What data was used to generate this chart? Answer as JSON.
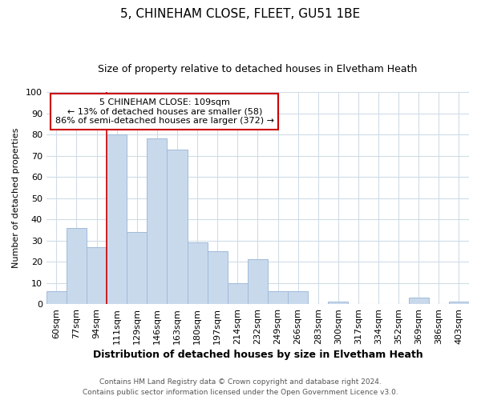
{
  "title1": "5, CHINEHAM CLOSE, FLEET, GU51 1BE",
  "title2": "Size of property relative to detached houses in Elvetham Heath",
  "xlabel": "Distribution of detached houses by size in Elvetham Heath",
  "ylabel": "Number of detached properties",
  "footnote1": "Contains HM Land Registry data © Crown copyright and database right 2024.",
  "footnote2": "Contains public sector information licensed under the Open Government Licence v3.0.",
  "annotation_line1": "5 CHINEHAM CLOSE: 109sqm",
  "annotation_line2": "← 13% of detached houses are smaller (58)",
  "annotation_line3": "86% of semi-detached houses are larger (372) →",
  "categories": [
    "60sqm",
    "77sqm",
    "94sqm",
    "111sqm",
    "129sqm",
    "146sqm",
    "163sqm",
    "180sqm",
    "197sqm",
    "214sqm",
    "232sqm",
    "249sqm",
    "266sqm",
    "283sqm",
    "300sqm",
    "317sqm",
    "334sqm",
    "352sqm",
    "369sqm",
    "386sqm",
    "403sqm"
  ],
  "values": [
    6,
    36,
    27,
    80,
    34,
    78,
    73,
    29,
    25,
    10,
    21,
    6,
    6,
    0,
    1,
    0,
    0,
    0,
    3,
    0,
    1
  ],
  "bar_color": "#c9d9ec",
  "bar_edge_color": "#a0bbda",
  "vline_color": "#cc0000",
  "ylim": [
    0,
    100
  ],
  "yticks": [
    0,
    10,
    20,
    30,
    40,
    50,
    60,
    70,
    80,
    90,
    100
  ],
  "bg_color": "#ffffff",
  "plot_bg_color": "#ffffff",
  "grid_color": "#d0dce8",
  "annotation_box_color": "#ffffff",
  "annotation_box_edge": "#cc0000",
  "title1_fontsize": 11,
  "title2_fontsize": 9,
  "xlabel_fontsize": 9,
  "ylabel_fontsize": 8,
  "tick_fontsize": 8,
  "ann_fontsize": 8
}
